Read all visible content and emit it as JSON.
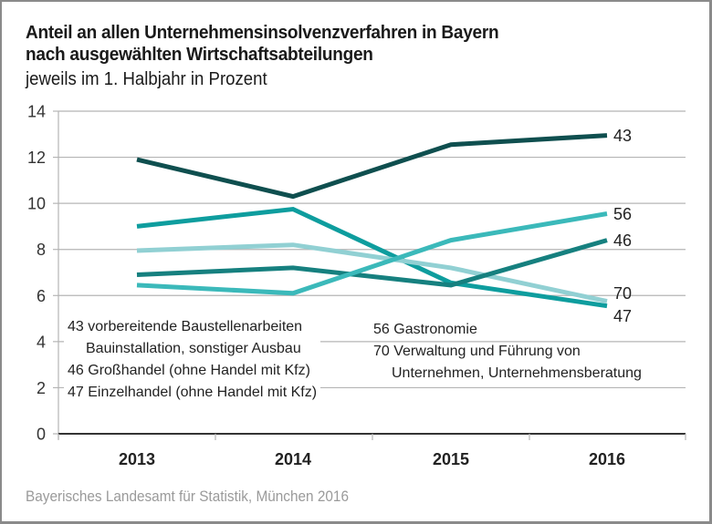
{
  "chart_data": {
    "type": "line",
    "title": "Anteil an allen Unternehmensinsolvenzverfahren in Bayern nach ausgewählten Wirtschaftsabteilungen",
    "title_lines": [
      "Anteil an allen Unternehmensinsolvenzverfahren in Bayern",
      "nach ausgewählten Wirtschaftsabteilungen"
    ],
    "subtitle": "jeweils im 1. Halbjahr in Prozent",
    "xlabel": "",
    "ylabel": "",
    "x": [
      "2013",
      "2014",
      "2015",
      "2016"
    ],
    "ylim": [
      0,
      14
    ],
    "yticks": [
      0,
      2,
      4,
      6,
      8,
      10,
      12,
      14
    ],
    "grid": true,
    "series": [
      {
        "name": "43",
        "color": "#0f4f4f",
        "values": [
          11.9,
          10.3,
          12.55,
          12.95
        ]
      },
      {
        "name": "47",
        "color": "#0e9d9e",
        "values": [
          9.0,
          9.75,
          6.55,
          5.55
        ]
      },
      {
        "name": "70",
        "color": "#91d0d3",
        "values": [
          7.95,
          8.2,
          7.2,
          5.75
        ]
      },
      {
        "name": "46",
        "color": "#16807f",
        "values": [
          6.9,
          7.2,
          6.45,
          8.4
        ]
      },
      {
        "name": "56",
        "color": "#3bb9ba",
        "values": [
          6.45,
          6.1,
          8.4,
          9.55
        ]
      }
    ],
    "end_labels": [
      "43",
      "56",
      "46",
      "70",
      "47"
    ],
    "legend": {
      "left": [
        {
          "text": "43 vorbereitende Baustellenarbeiten",
          "indent": false
        },
        {
          "text": "Bauinstallation, sonstiger Ausbau",
          "indent": true
        },
        {
          "text": "46 Großhandel (ohne Handel mit Kfz)",
          "indent": false
        },
        {
          "text": "47 Einzelhandel (ohne Handel mit Kfz)",
          "indent": false
        }
      ],
      "right": [
        {
          "text": "56 Gastronomie",
          "indent": false
        },
        {
          "text": "70 Verwaltung und Führung von",
          "indent": false
        },
        {
          "text": "Unternehmen, Unternehmensberatung",
          "indent": true
        }
      ]
    },
    "source": "Bayerisches Landesamt für Statistik, München 2016"
  }
}
